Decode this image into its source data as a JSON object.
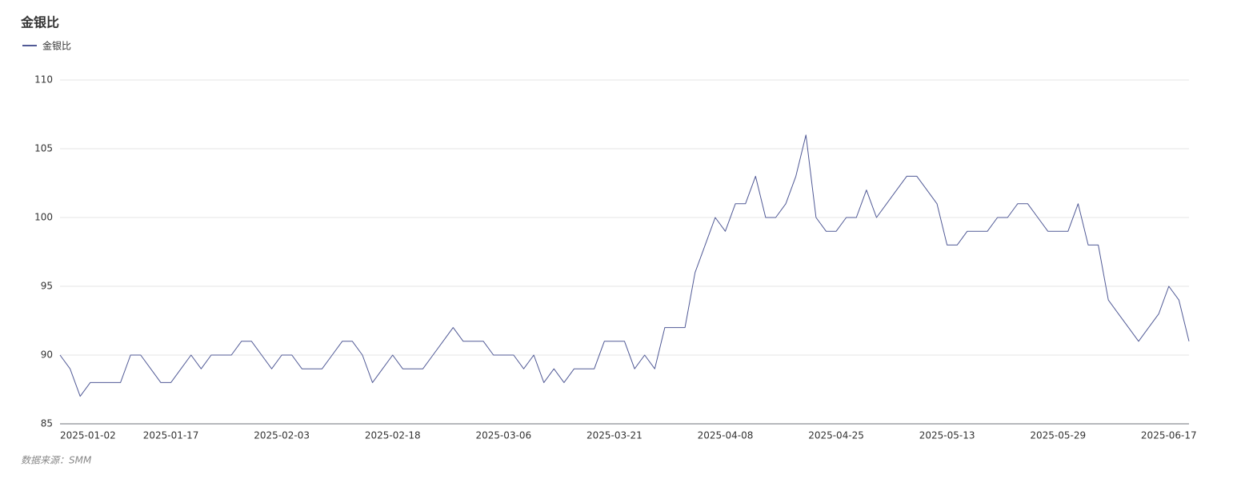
{
  "chart_data": {
    "type": "line",
    "title": "金银比",
    "source": "数据来源：SMM",
    "categories": [
      "2025-01-02",
      null,
      null,
      null,
      null,
      null,
      null,
      null,
      null,
      null,
      null,
      "2025-01-17",
      null,
      null,
      null,
      null,
      null,
      null,
      null,
      null,
      null,
      null,
      "2025-02-03",
      null,
      null,
      null,
      null,
      null,
      null,
      null,
      null,
      null,
      null,
      "2025-02-18",
      null,
      null,
      null,
      null,
      null,
      null,
      null,
      null,
      null,
      null,
      "2025-03-06",
      null,
      null,
      null,
      null,
      null,
      null,
      null,
      null,
      null,
      null,
      "2025-03-21",
      null,
      null,
      null,
      null,
      null,
      null,
      null,
      null,
      null,
      null,
      "2025-04-08",
      null,
      null,
      null,
      null,
      null,
      null,
      null,
      null,
      null,
      null,
      "2025-04-25",
      null,
      null,
      null,
      null,
      null,
      null,
      null,
      null,
      null,
      null,
      "2025-05-13",
      null,
      null,
      null,
      null,
      null,
      null,
      null,
      null,
      null,
      null,
      "2025-05-29",
      null,
      null,
      null,
      null,
      null,
      null,
      null,
      null,
      null,
      null,
      "2025-06-17",
      null,
      null
    ],
    "series": [
      {
        "name": "金银比",
        "color": "#515a96",
        "values": [
          90,
          89,
          87,
          88,
          88,
          88,
          88,
          90,
          90,
          89,
          88,
          88,
          89,
          90,
          89,
          90,
          90,
          90,
          91,
          91,
          90,
          89,
          90,
          90,
          89,
          89,
          89,
          90,
          91,
          91,
          90,
          88,
          89,
          90,
          89,
          89,
          89,
          90,
          91,
          92,
          91,
          91,
          91,
          90,
          90,
          90,
          89,
          90,
          88,
          89,
          88,
          89,
          89,
          89,
          91,
          91,
          91,
          89,
          90,
          89,
          92,
          92,
          92,
          96,
          98,
          100,
          99,
          101,
          101,
          103,
          100,
          100,
          101,
          103,
          106,
          100,
          99,
          99,
          100,
          100,
          102,
          100,
          101,
          102,
          103,
          103,
          102,
          101,
          98,
          98,
          99,
          99,
          99,
          100,
          100,
          101,
          101,
          100,
          99,
          99,
          99,
          101,
          98,
          98,
          94,
          93,
          92,
          91,
          92,
          93,
          95,
          94,
          91
        ]
      }
    ],
    "ylim": [
      85,
      110
    ],
    "yticks": [
      85,
      90,
      95,
      100,
      105,
      110
    ],
    "grid": true
  }
}
